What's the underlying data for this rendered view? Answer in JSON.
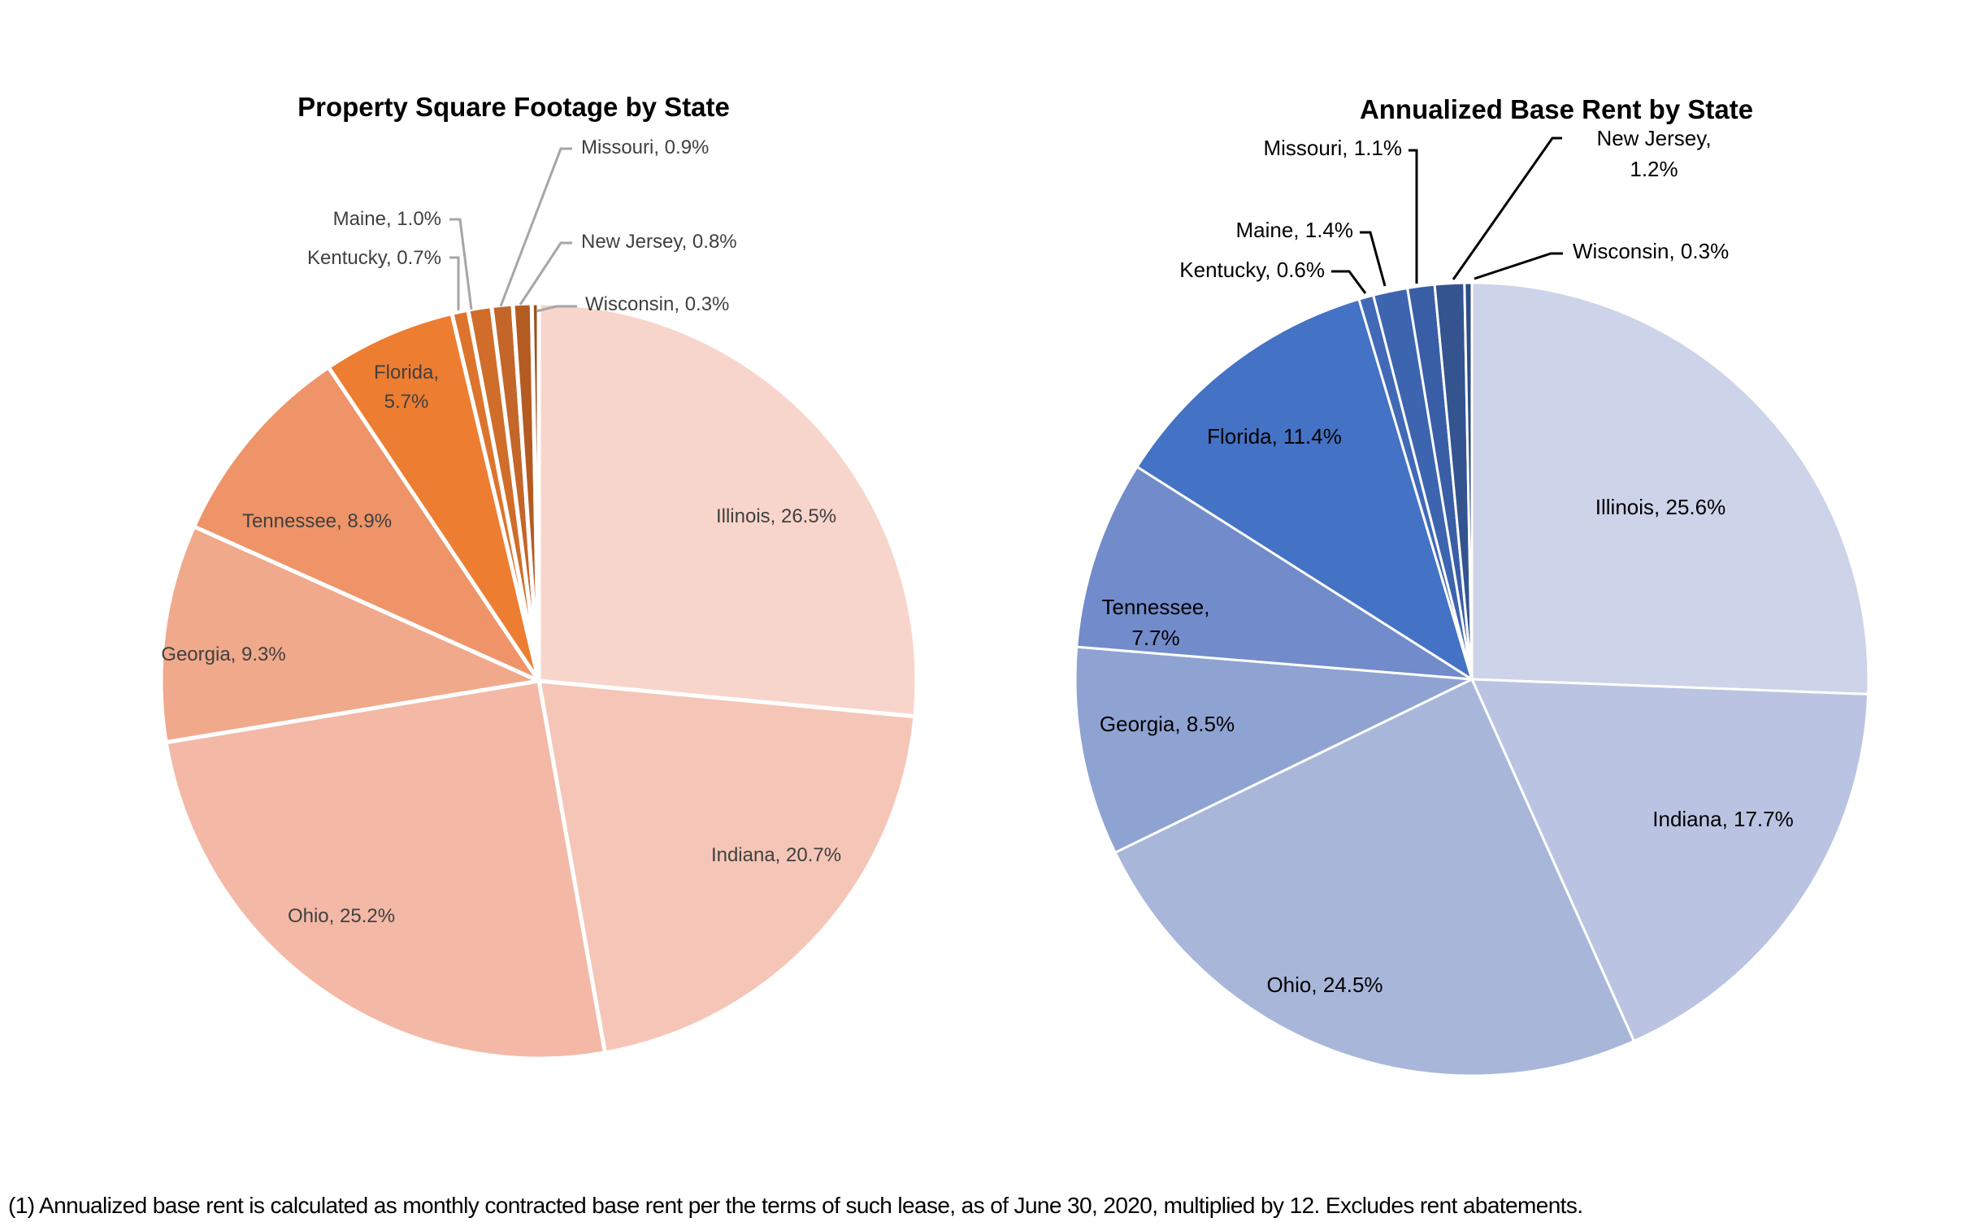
{
  "chart_data": [
    {
      "type": "pie",
      "title": "Property Square Footage by State",
      "categories": [
        "Illinois",
        "Indiana",
        "Ohio",
        "Georgia",
        "Tennessee",
        "Florida",
        "Kentucky",
        "Maine",
        "Missouri",
        "New Jersey",
        "Wisconsin"
      ],
      "values": [
        26.5,
        20.7,
        25.2,
        9.3,
        8.9,
        5.7,
        0.7,
        1.0,
        0.9,
        0.8,
        0.3
      ],
      "labels": [
        "Illinois, 26.5%",
        "Indiana, 20.7%",
        "Ohio, 25.2%",
        "Georgia, 9.3%",
        "Tennessee, 8.9%",
        "Florida, 5.7%",
        "Kentucky, 0.7%",
        "Maine, 1.0%",
        "Missouri, 0.9%",
        "New Jersey, 0.8%",
        "Wisconsin, 0.3%"
      ],
      "colors": [
        "#F8D5CB",
        "#F5C6B7",
        "#F3B9A6",
        "#F0A98B",
        "#EE9468",
        "#ED7D31",
        "#DD742D",
        "#D06D2A",
        "#C4652A",
        "#B45B22",
        "#9E4F1E"
      ],
      "unit": "%",
      "start": "12 o'clock, clockwise",
      "leader_line_color": "#A6A6A6"
    },
    {
      "type": "pie",
      "title": "Annualized Base Rent by State",
      "categories": [
        "Illinois",
        "Indiana",
        "Ohio",
        "Georgia",
        "Tennessee",
        "Florida",
        "Kentucky",
        "Maine",
        "Missouri",
        "New Jersey",
        "Wisconsin"
      ],
      "values": [
        25.6,
        17.7,
        24.5,
        8.5,
        7.7,
        11.4,
        0.6,
        1.4,
        1.1,
        1.2,
        0.3
      ],
      "labels": [
        "Illinois, 25.6%",
        "Indiana, 17.7%",
        "Ohio, 24.5%",
        "Georgia, 8.5%",
        [
          "Tennessee,",
          "7.7%"
        ],
        "Florida, 11.4%",
        "Kentucky, 0.6%",
        "Maine, 1.4%",
        "Missouri, 1.1%",
        [
          "New Jersey,",
          "1.2%"
        ],
        "Wisconsin, 0.3%"
      ],
      "colors": [
        "#CDD3E8",
        "#BAC4E2",
        "#A8B6DA",
        "#8FA3D3",
        "#728BCA",
        "#4472C4",
        "#4169B8",
        "#3D64AE",
        "#3A5EA6",
        "#33548F",
        "#2F4E86"
      ],
      "unit": "%",
      "start": "12 o'clock, clockwise",
      "leader_line_color": "#000000"
    }
  ],
  "footnote": "(1) Annualized base rent is calculated as monthly contracted base rent per the terms of such lease, as of June 30, 2020, multiplied by 12. Excludes rent abatements."
}
